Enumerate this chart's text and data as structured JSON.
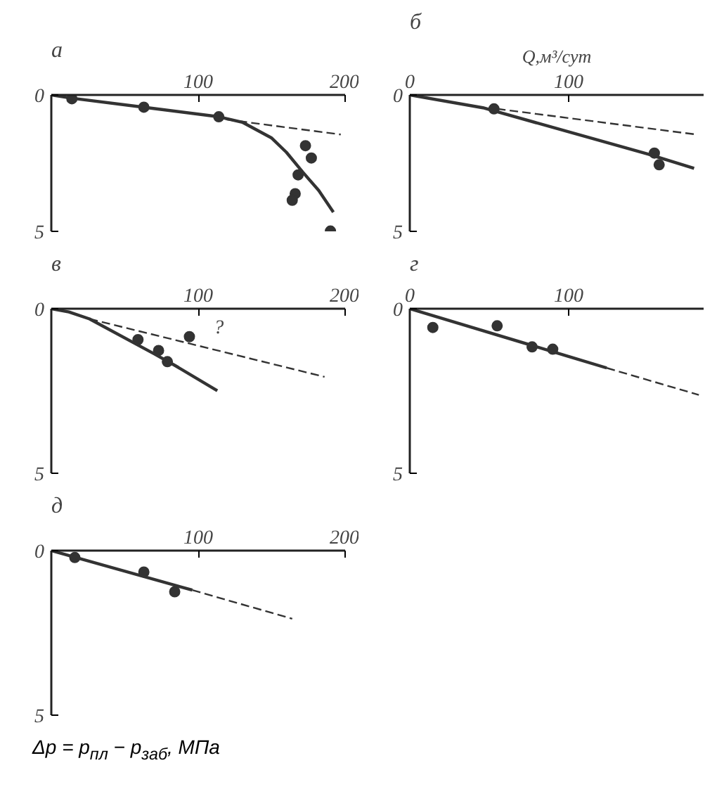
{
  "chart_data": [
    {
      "type": "line",
      "title": "а",
      "xlim": [
        0,
        200
      ],
      "ylim": [
        5,
        0
      ],
      "xticks": [
        100,
        200
      ],
      "yticks": [
        0,
        5
      ],
      "grid": false,
      "series": [
        {
          "type": "scatter",
          "marker": "circle",
          "color": "#333333",
          "x": [
            14,
            63,
            114,
            173,
            177,
            168,
            166,
            164,
            190
          ],
          "values": [
            0.14,
            0.45,
            0.8,
            1.86,
            2.31,
            2.93,
            3.62,
            3.86,
            4.99
          ]
        },
        {
          "color": "#333333",
          "line_style": "solid",
          "x": [
            0,
            14,
            63,
            114,
            130,
            150,
            160,
            171,
            182,
            192
          ],
          "values": [
            0,
            0.12,
            0.45,
            0.8,
            1.0,
            1.58,
            2.1,
            2.82,
            3.5,
            4.3
          ]
        },
        {
          "color": "#333333",
          "line_style": "dashed",
          "x": [
            119,
            197
          ],
          "values": [
            0.9,
            1.45
          ]
        }
      ]
    },
    {
      "type": "line",
      "title": "б",
      "xlabel": "Q,м³/сут",
      "xlim": [
        0,
        185
      ],
      "ylim": [
        5,
        0
      ],
      "xticks": [
        0,
        100
      ],
      "yticks": [
        0,
        5
      ],
      "grid": false,
      "series": [
        {
          "type": "scatter",
          "marker": "circle",
          "color": "#333333",
          "x": [
            53,
            154,
            157
          ],
          "values": [
            0.51,
            2.13,
            2.56
          ]
        },
        {
          "color": "#333333",
          "line_style": "solid",
          "x": [
            0,
            46,
            150,
            179
          ],
          "values": [
            0,
            0.47,
            2.17,
            2.69
          ]
        },
        {
          "color": "#333333",
          "line_style": "dashed",
          "x": [
            55,
            179
          ],
          "values": [
            0.51,
            1.44
          ]
        }
      ]
    },
    {
      "type": "line",
      "title": "в",
      "xlim": [
        0,
        200
      ],
      "ylim": [
        5,
        0
      ],
      "xticks": [
        100,
        200
      ],
      "yticks": [
        0,
        5
      ],
      "grid": false,
      "annotations": [
        "?"
      ],
      "series": [
        {
          "type": "scatter",
          "marker": "circle",
          "color": "#333333",
          "x": [
            59,
            73,
            79,
            94
          ],
          "values": [
            0.94,
            1.27,
            1.61,
            0.85
          ]
        },
        {
          "color": "#333333",
          "line_style": "solid",
          "x": [
            0,
            12,
            26,
            70,
            84,
            113
          ],
          "values": [
            0,
            0.1,
            0.31,
            1.37,
            1.72,
            2.49
          ]
        },
        {
          "color": "#333333",
          "line_style": "dashed",
          "x": [
            26,
            186
          ],
          "values": [
            0.31,
            2.07
          ]
        }
      ]
    },
    {
      "type": "line",
      "title": "г",
      "xlim": [
        0,
        185
      ],
      "ylim": [
        5,
        0
      ],
      "xticks": [
        0,
        100
      ],
      "yticks": [
        0,
        5
      ],
      "grid": false,
      "series": [
        {
          "type": "scatter",
          "marker": "circle",
          "color": "#333333",
          "x": [
            14.5,
            55,
            77,
            90
          ],
          "values": [
            0.57,
            0.52,
            1.16,
            1.23
          ]
        },
        {
          "color": "#333333",
          "line_style": "solid",
          "x": [
            0,
            124
          ],
          "values": [
            0,
            1.8
          ]
        },
        {
          "color": "#333333",
          "line_style": "dashed",
          "x": [
            124,
            182
          ],
          "values": [
            1.8,
            2.62
          ]
        }
      ]
    },
    {
      "type": "line",
      "title": "д",
      "ylabel": "Δp = p$_{пл}$ − p$_{заб}$, МПа",
      "xlim": [
        0,
        200
      ],
      "ylim": [
        5,
        0
      ],
      "xticks": [
        100,
        200
      ],
      "yticks": [
        0,
        5
      ],
      "grid": false,
      "series": [
        {
          "type": "scatter",
          "marker": "circle",
          "color": "#333333",
          "x": [
            16,
            63,
            84
          ],
          "values": [
            0.21,
            0.65,
            1.25
          ]
        },
        {
          "color": "#333333",
          "line_style": "solid",
          "x": [
            0,
            96
          ],
          "values": [
            0,
            1.2
          ]
        },
        {
          "color": "#333333",
          "line_style": "dashed",
          "x": [
            96,
            164
          ],
          "values": [
            1.2,
            2.07
          ]
        }
      ]
    }
  ]
}
